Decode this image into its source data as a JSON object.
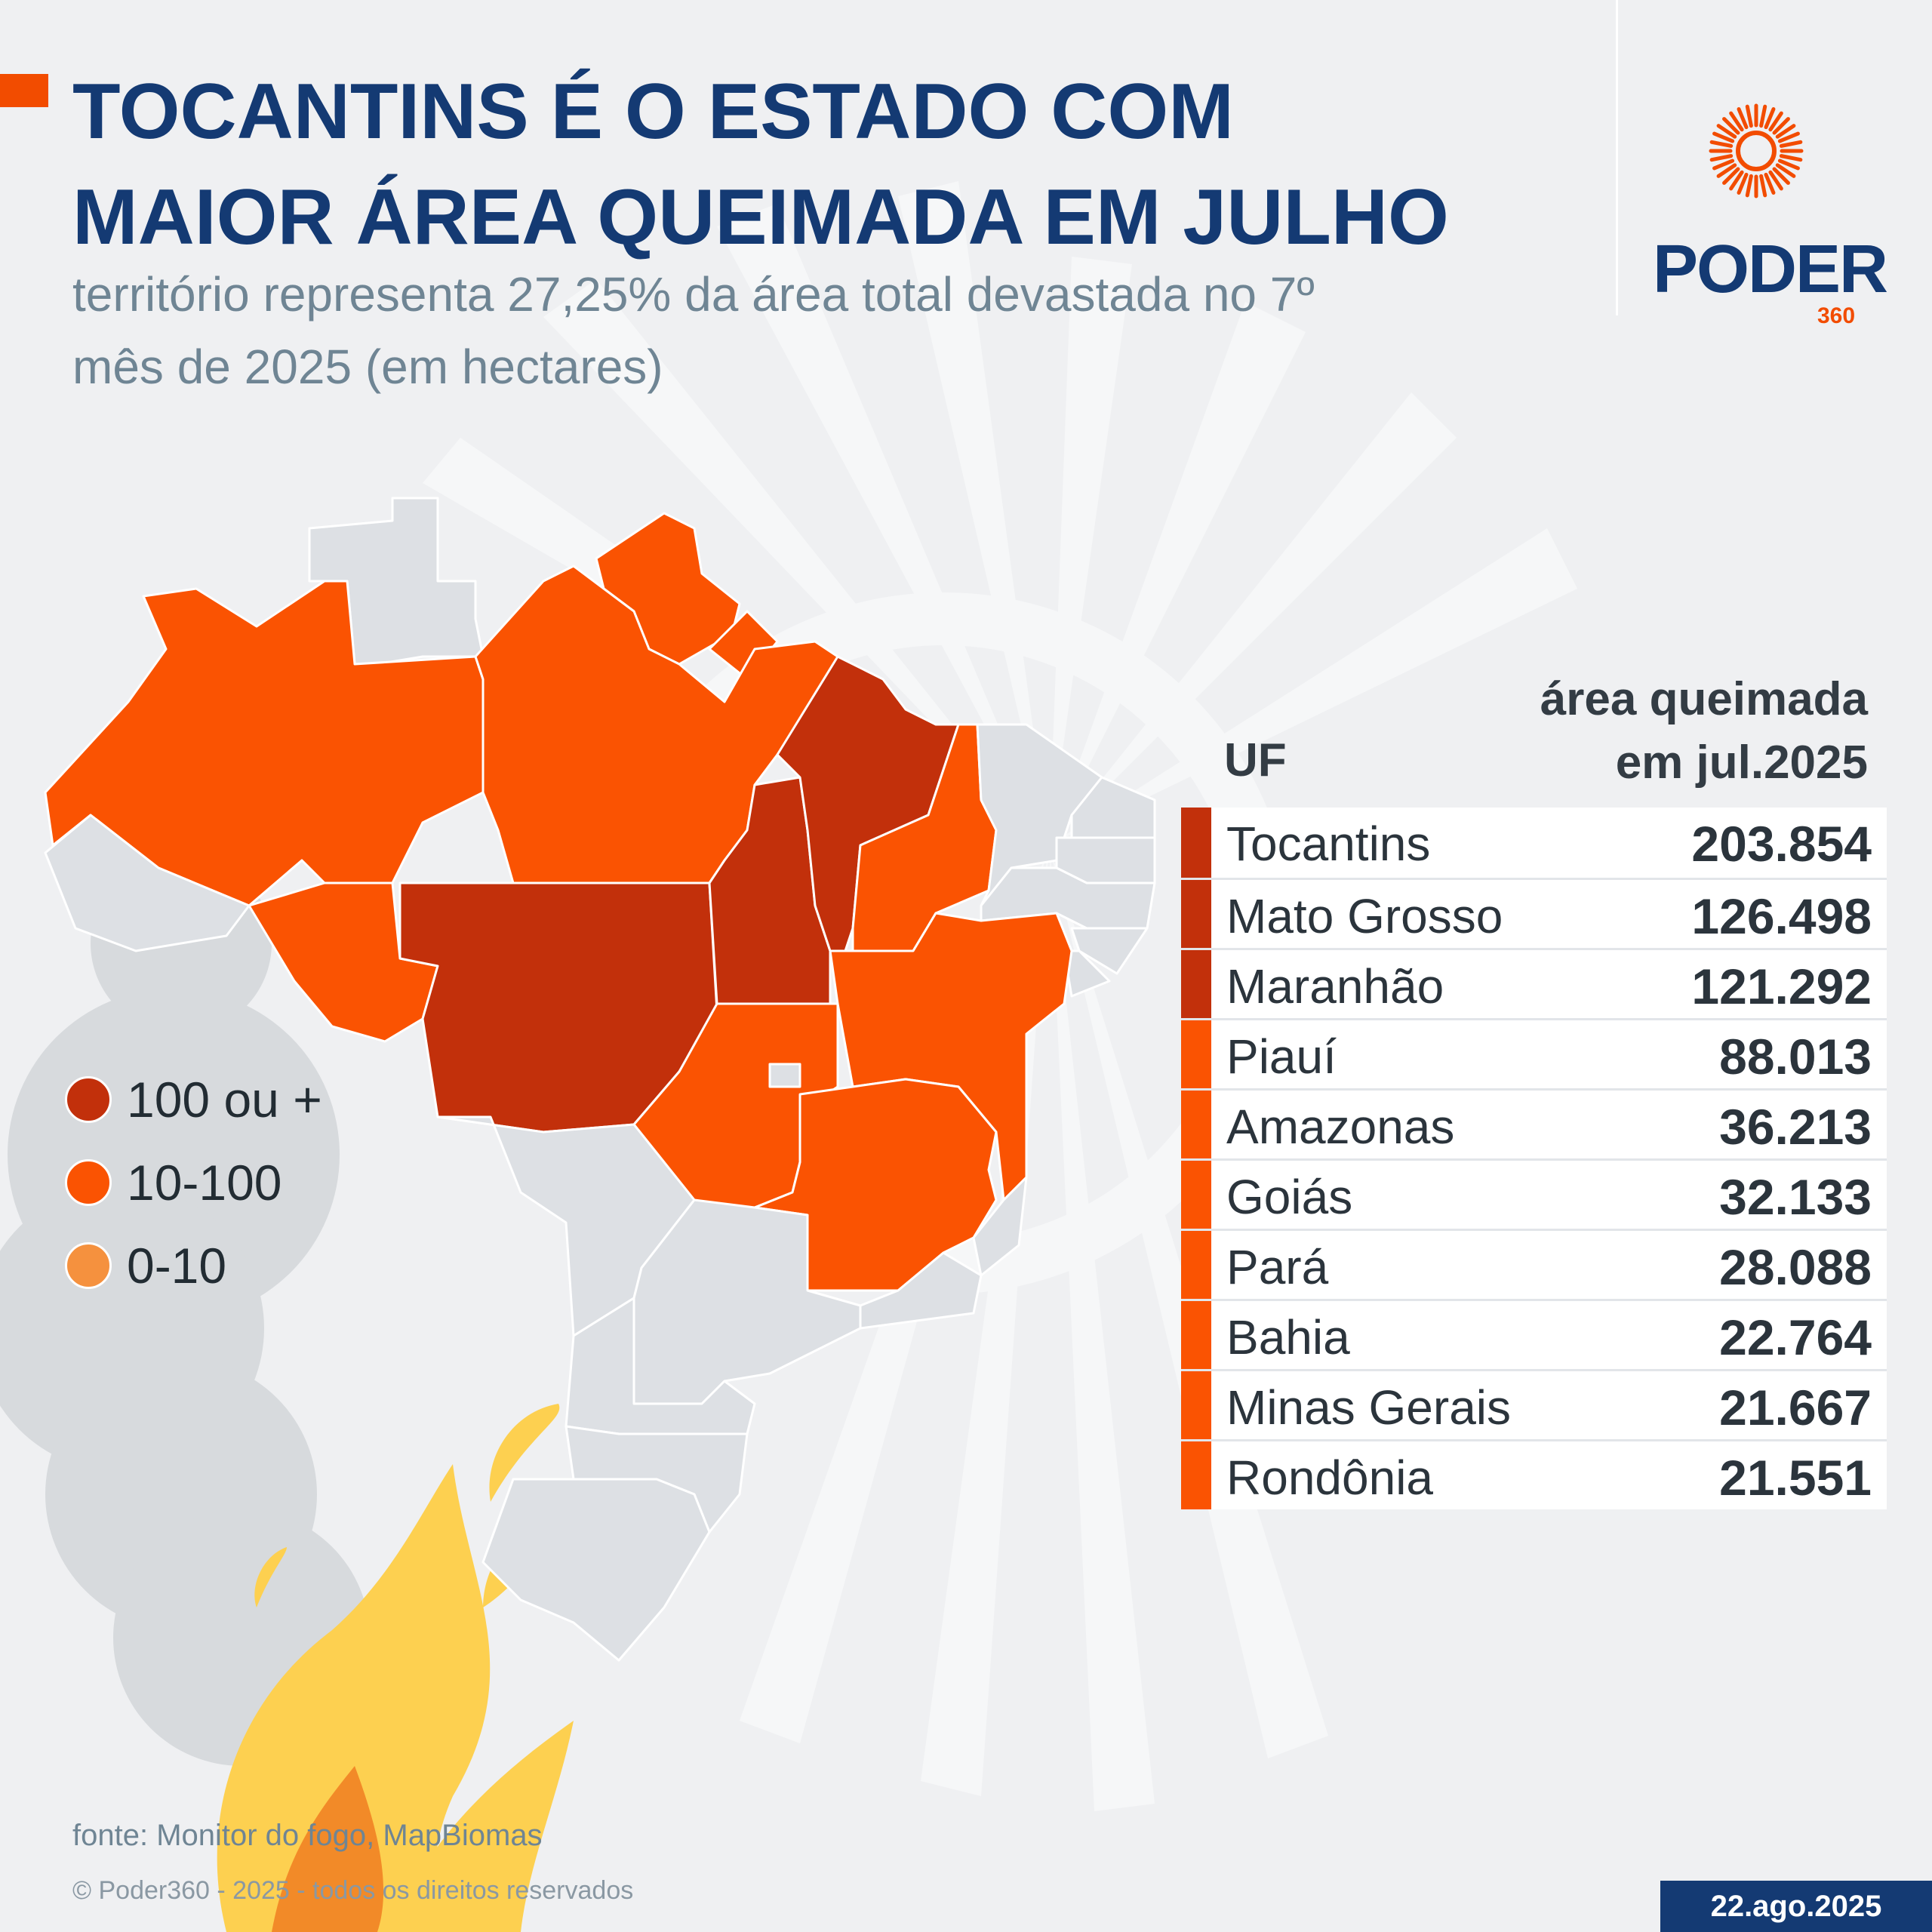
{
  "header": {
    "title_line1": "TOCANTINS É O ESTADO COM",
    "title_line2": "MAIOR ÁREA QUEIMADA EM JULHO",
    "subtitle_line1": "território representa 27,25% da área total devastada no 7º",
    "subtitle_line2": "mês de 2025 (em hectares)"
  },
  "brand": {
    "name": "PODER",
    "number": "360",
    "color": "#f24c00",
    "text_color": "#143a73"
  },
  "legend": [
    {
      "label": "100 ou +",
      "color": "#c2300b"
    },
    {
      "label": "10-100",
      "color": "#fa5302"
    },
    {
      "label": "0-10",
      "color": "#f5913e"
    }
  ],
  "map": {
    "colors": {
      "high": "#c2300b",
      "mid": "#fa5302",
      "low": "#f5913e",
      "none": "#dde0e4",
      "border": "#ffffff"
    },
    "states": [
      {
        "uf": "Tocantins",
        "category": "high"
      },
      {
        "uf": "Mato Grosso",
        "category": "high"
      },
      {
        "uf": "Maranhão",
        "category": "high"
      },
      {
        "uf": "Piauí",
        "category": "mid"
      },
      {
        "uf": "Amazonas",
        "category": "mid"
      },
      {
        "uf": "Goiás",
        "category": "mid"
      },
      {
        "uf": "Pará",
        "category": "mid"
      },
      {
        "uf": "Bahia",
        "category": "mid"
      },
      {
        "uf": "Minas Gerais",
        "category": "mid"
      },
      {
        "uf": "Rondônia",
        "category": "mid"
      },
      {
        "uf": "Amapá",
        "category": "mid"
      },
      {
        "uf": "Acre",
        "category": "none"
      },
      {
        "uf": "Roraima",
        "category": "none"
      },
      {
        "uf": "Ceará",
        "category": "none"
      },
      {
        "uf": "Rio Grande do Norte",
        "category": "none"
      },
      {
        "uf": "Paraíba",
        "category": "none"
      },
      {
        "uf": "Pernambuco",
        "category": "none"
      },
      {
        "uf": "Alagoas",
        "category": "none"
      },
      {
        "uf": "Sergipe",
        "category": "none"
      },
      {
        "uf": "Mato Grosso do Sul",
        "category": "none"
      },
      {
        "uf": "São Paulo",
        "category": "none"
      },
      {
        "uf": "Paraná",
        "category": "none"
      },
      {
        "uf": "Santa Catarina",
        "category": "none"
      },
      {
        "uf": "Rio Grande do Sul",
        "category": "none"
      },
      {
        "uf": "Rio de Janeiro",
        "category": "none"
      },
      {
        "uf": "Espírito Santo",
        "category": "none"
      },
      {
        "uf": "Distrito Federal",
        "category": "none"
      }
    ]
  },
  "table": {
    "col_uf": "UF",
    "col_value_line1": "área queimada",
    "col_value_line2": "em jul.2025",
    "rows": [
      {
        "uf": "Tocantins",
        "value": "203.854",
        "color": "#c2300b"
      },
      {
        "uf": "Mato Grosso",
        "value": "126.498",
        "color": "#c2300b"
      },
      {
        "uf": "Maranhão",
        "value": "121.292",
        "color": "#c2300b"
      },
      {
        "uf": "Piauí",
        "value": "88.013",
        "color": "#fa5302"
      },
      {
        "uf": "Amazonas",
        "value": "36.213",
        "color": "#fa5302"
      },
      {
        "uf": "Goiás",
        "value": "32.133",
        "color": "#fa5302"
      },
      {
        "uf": "Pará",
        "value": "28.088",
        "color": "#fa5302"
      },
      {
        "uf": "Bahia",
        "value": "22.764",
        "color": "#fa5302"
      },
      {
        "uf": "Minas Gerais",
        "value": "21.667",
        "color": "#fa5302"
      },
      {
        "uf": "Rondônia",
        "value": "21.551",
        "color": "#fa5302"
      }
    ]
  },
  "footer": {
    "source": "fonte: Monitor do fogo, MapBiomas",
    "copyright": "© Poder360 - 2025 - todos os direitos reservados",
    "date": "22.ago.2025"
  }
}
